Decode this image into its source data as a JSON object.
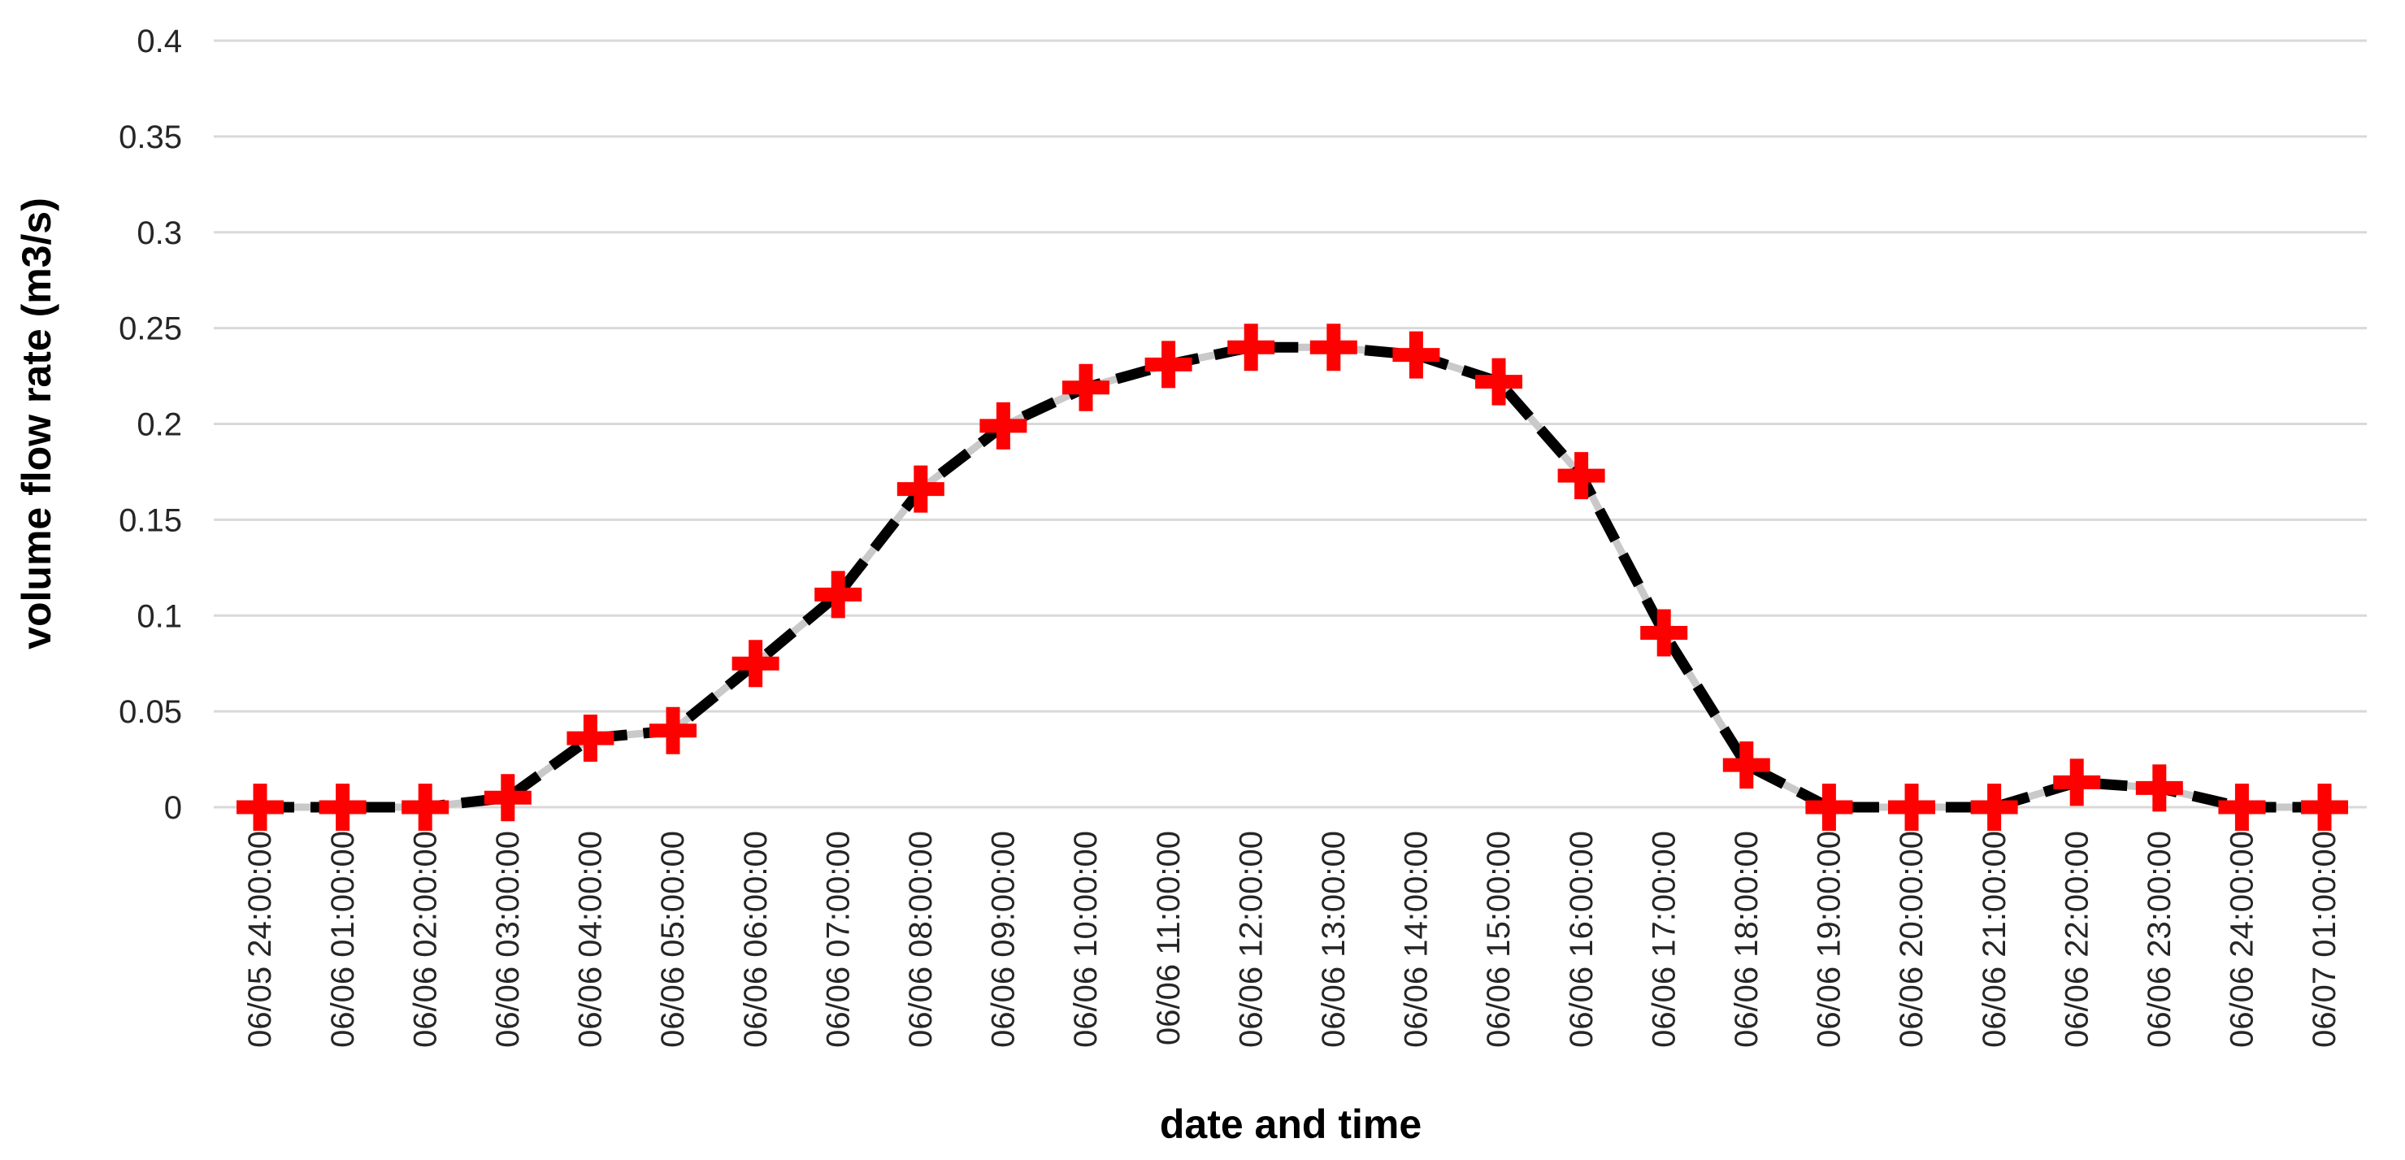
{
  "chart_data": {
    "type": "line",
    "title": "",
    "xlabel": "date and time",
    "ylabel": "volume flow rate (m3/s)",
    "ylim": [
      0,
      0.4
    ],
    "yticks": [
      0,
      0.05,
      0.1,
      0.15,
      0.2,
      0.25,
      0.3,
      0.35,
      0.4
    ],
    "ytick_labels": [
      "0",
      "0.05",
      "0.1",
      "0.15",
      "0.2",
      "0.25",
      "0.3",
      "0.35",
      "0.4"
    ],
    "grid": "horizontal",
    "legend_position": "none",
    "categories": [
      "06/05 24:00:00",
      "06/06 01:00:00",
      "06/06 02:00:00",
      "06/06 03:00:00",
      "06/06 04:00:00",
      "06/06 05:00:00",
      "06/06 06:00:00",
      "06/06 07:00:00",
      "06/06 08:00:00",
      "06/06 09:00:00",
      "06/06 10:00:00",
      "06/06 11:00:00",
      "06/06 12:00:00",
      "06/06 13:00:00",
      "06/06 14:00:00",
      "06/06 15:00:00",
      "06/06 16:00:00",
      "06/06 17:00:00",
      "06/06 18:00:00",
      "06/06 19:00:00",
      "06/06 20:00:00",
      "06/06 21:00:00",
      "06/06 22:00:00",
      "06/06 23:00:00",
      "06/06 24:00:00",
      "06/07 01:00:00"
    ],
    "series": [
      {
        "name": "volume flow rate",
        "values": [
          0,
          0,
          0,
          0.005,
          0.036,
          0.04,
          0.075,
          0.111,
          0.166,
          0.199,
          0.219,
          0.231,
          0.24,
          0.24,
          0.236,
          0.222,
          0.173,
          0.091,
          0.022,
          0,
          0,
          0,
          0.013,
          0.01,
          0,
          0
        ]
      }
    ],
    "styles": {
      "background": "#ffffff",
      "gridline_color": "#d9d9d9",
      "line_color": "#000000",
      "line_style": "dashed",
      "line_underlay_color": "#c9c9c9",
      "marker_shape": "plus",
      "marker_color": "#fe0000",
      "tick_label_color": "#262626",
      "axis_title_color": "#000000"
    }
  }
}
